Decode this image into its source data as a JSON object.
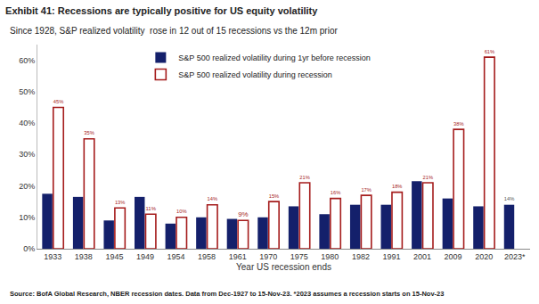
{
  "chart_data": {
    "type": "bar",
    "title": "Exhibit 41: Recessions are typically positive for US equity volatility",
    "subtitle": "Since 1928, S&P realized volatility  rose in 12 out of 15 recessions vs the 12m prior",
    "x_label": "Year US recession ends",
    "source": "Source: BofA Global Research, NBER recession dates. Data from Dec-1927 to 15-Nov-23. *2023 assumes a recession starts on 15-Nov-23",
    "categories": [
      "1933",
      "1938",
      "1945",
      "1949",
      "1954",
      "1958",
      "1961",
      "1970",
      "1975",
      "1980",
      "1982",
      "1991",
      "2001",
      "2009",
      "2020",
      "2023*"
    ],
    "series": [
      {
        "name": "S&P 500 realized volatility during 1yr before recession",
        "color": "#14206b",
        "values": [
          17.5,
          16.5,
          9,
          16.5,
          8,
          10,
          9.5,
          10,
          13.5,
          11,
          14,
          14,
          21.5,
          16,
          13.5,
          14
        ],
        "value_labels": [
          null,
          null,
          null,
          null,
          null,
          null,
          null,
          null,
          null,
          null,
          null,
          null,
          null,
          null,
          null,
          "14%"
        ]
      },
      {
        "name": "S&P 500 realized volatility during recession",
        "color": "#a51c1c",
        "values": [
          45,
          35,
          13,
          11,
          10,
          14,
          9,
          15,
          21,
          16,
          17,
          18,
          21,
          38,
          61,
          null
        ],
        "value_labels": [
          "45%",
          "35%",
          "13%",
          "11%",
          "10%",
          "14%",
          "9%",
          "15%",
          "21%",
          "16%",
          "17%",
          "18%",
          "21%",
          "38%",
          "61%",
          null
        ]
      }
    ],
    "ylim": [
      0,
      65
    ],
    "yticks": [
      {
        "value": 0,
        "label": "0%"
      },
      {
        "value": 10,
        "label": "10%"
      },
      {
        "value": 20,
        "label": "20%"
      },
      {
        "value": 30,
        "label": "30%"
      },
      {
        "value": 40,
        "label": "40%"
      },
      {
        "value": 50,
        "label": "50%"
      },
      {
        "value": 60,
        "label": "60%"
      }
    ],
    "grid": false,
    "legend": "top",
    "data_labels": true
  }
}
